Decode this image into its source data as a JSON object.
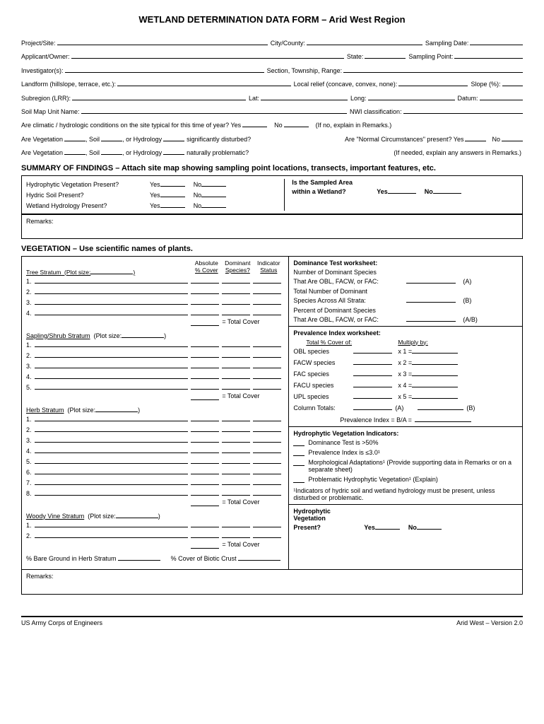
{
  "title": "WETLAND DETERMINATION DATA FORM – Arid West Region",
  "hdr": {
    "project": "Project/Site:",
    "city": "City/County:",
    "sampdate": "Sampling Date:",
    "applicant": "Applicant/Owner:",
    "state": "State:",
    "samppoint": "Sampling Point:",
    "investigator": "Investigator(s):",
    "section": "Section, Township, Range:",
    "landform": "Landform (hillslope, terrace, etc.):",
    "relief": "Local relief (concave, convex, none):",
    "slope": "Slope (%):",
    "subregion": "Subregion (LRR):",
    "lat": "Lat:",
    "long": "Long:",
    "datum": "Datum:",
    "soilmap": "Soil Map Unit Name:",
    "nwi": "NWI classification:",
    "climatic": "Are climatic / hydrologic conditions on the site typical for this time of year?  Yes",
    "no": "No",
    "climaticNote": "(If no, explain in Remarks.)",
    "dist1": "Are Vegetation",
    "soil": ", Soil",
    "hydro": ", or Hydrology",
    "dist1b": "significantly disturbed?",
    "normal": "Are \"Normal Circumstances\" present?   Yes",
    "no2": "No",
    "prob": "naturally problematic?",
    "probNote": "(If needed, explain any answers in Remarks.)"
  },
  "summary": {
    "heading": "SUMMARY OF FINDINGS –  Attach site map showing sampling point locations, transects, important features, etc.",
    "q1": "Hydrophytic Vegetation Present?",
    "q2": "Hydric Soil Present?",
    "q3": "Wetland Hydrology Present?",
    "yes": "Yes",
    "no": "No",
    "sampled": "Is the Sampled Area",
    "within": "within a Wetland?",
    "remarks": "Remarks:"
  },
  "veg": {
    "heading": "VEGETATION – Use scientific names of plants.",
    "colAbs": "Absolute",
    "colCover": "% Cover",
    "colDom": "Dominant",
    "colSpec": "Species?",
    "colInd": "Indicator",
    "colStat": "Status",
    "tree": "Tree Stratum",
    "plot": "(Plot size:",
    "plotEnd": ")",
    "sapling": "Sapling/Shrub Stratum",
    "herb": "Herb Stratum",
    "woody": "Woody Vine Stratum",
    "total": "= Total Cover",
    "bare": "% Bare Ground in Herb Stratum",
    "biotic": "% Cover of Biotic Crust",
    "remarks": "Remarks:"
  },
  "dom": {
    "hdr": "Dominance Test worksheet:",
    "l1": "Number of Dominant Species",
    "l1b": "That Are OBL, FACW, or FAC:",
    "a": "(A)",
    "l2": "Total Number of Dominant",
    "l2b": "Species Across All Strata:",
    "b": "(B)",
    "l3": "Percent of Dominant Species",
    "l3b": "That Are OBL, FACW, or FAC:",
    "ab": "(A/B)"
  },
  "prev": {
    "hdr": "Prevalence Index worksheet:",
    "col1": "Total % Cover of:",
    "col2": "Multiply by:",
    "obl": "OBL species",
    "facw": "FACW species",
    "fac": "FAC species",
    "facu": "FACU species",
    "upl": "UPL species",
    "x1": "x 1 =",
    "x2": "x 2 =",
    "x3": "x 3 =",
    "x4": "x 4 =",
    "x5": "x 5 =",
    "totals": "Column Totals:",
    "a": "(A)",
    "b": "(B)",
    "pi": "Prevalence Index  = B/A ="
  },
  "ind": {
    "hdr": "Hydrophytic Vegetation Indicators:",
    "i1": "Dominance Test is >50%",
    "i2": "Prevalence Index is ≤3.0¹",
    "i3": "Morphological Adaptations¹ (Provide supporting data in Remarks or on a separate sheet)",
    "i4": "Problematic Hydrophytic Vegetation¹ (Explain)",
    "note": "¹Indicators of hydric soil and wetland hydrology must be present, unless disturbed or problematic.",
    "present": "Hydrophytic",
    "present2": "Vegetation",
    "present3": "Present?",
    "yes": "Yes",
    "no": "No"
  },
  "footer": {
    "left": "US Army Corps of Engineers",
    "right": "Arid West – Version 2.0"
  }
}
